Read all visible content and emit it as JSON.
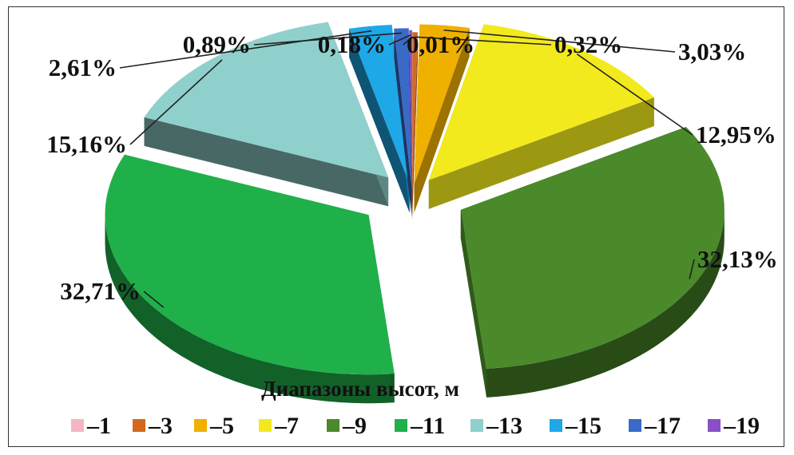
{
  "chart_data": {
    "type": "pie",
    "subtype": "3d-exploded",
    "legend_title": "Диапазоны высот, м",
    "legend_position": "bottom",
    "categories": [
      "-1",
      "-3",
      "-5",
      "-7",
      "-9",
      "-11",
      "-13",
      "-15",
      "-17",
      "-19"
    ],
    "values": [
      0.01,
      0.32,
      3.03,
      12.95,
      32.13,
      32.71,
      15.16,
      2.61,
      0.89,
      0.18
    ],
    "labels": [
      "0,01%",
      "0,32%",
      "3,03%",
      "12,95%",
      "32,13%",
      "32,71%",
      "15,16%",
      "2,61%",
      "0,89%",
      "0,18%"
    ],
    "colors": [
      "#f4b6c2",
      "#d2691e",
      "#f0b000",
      "#f2ea1c",
      "#4a8a2a",
      "#20b04a",
      "#8fd0cc",
      "#1ea8e8",
      "#3a6ac8",
      "#8a4fc8"
    ]
  }
}
